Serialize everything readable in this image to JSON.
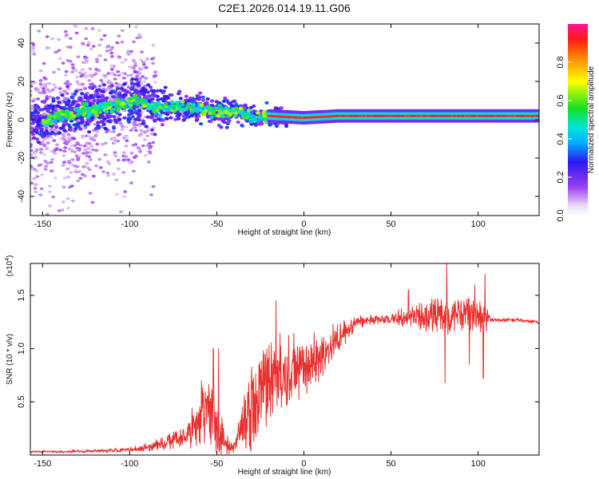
{
  "title": "C2E1.2026.014.19.11.G06",
  "colors": {
    "snr_line": "#e8302f",
    "background": "#ffffff",
    "axes": "#000000"
  },
  "chart_data": [
    {
      "type": "heatmap",
      "name": "spectrogram",
      "xlabel": "Height of straight line (km)",
      "ylabel": "Frequency (Hz)",
      "xlim": [
        -157,
        135
      ],
      "ylim": [
        -50,
        50
      ],
      "x_ticks": [
        "-150",
        "-100",
        "-50",
        "0",
        "50",
        "100"
      ],
      "x_tick_values": [
        -150,
        -100,
        -50,
        0,
        50,
        100
      ],
      "y_ticks": [
        "-40",
        "-20",
        "0",
        "20",
        "40"
      ],
      "y_tick_values": [
        -40,
        -20,
        0,
        20,
        40
      ],
      "ridge": [
        {
          "x": -150,
          "f": 0
        },
        {
          "x": -130,
          "f": 4
        },
        {
          "x": -110,
          "f": 7
        },
        {
          "x": -95,
          "f": 10
        },
        {
          "x": -85,
          "f": 6
        },
        {
          "x": -75,
          "f": 7
        },
        {
          "x": -60,
          "f": 6
        },
        {
          "x": -50,
          "f": 4
        },
        {
          "x": -40,
          "f": 5
        },
        {
          "x": -30,
          "f": 1
        },
        {
          "x": -20,
          "f": 2
        },
        {
          "x": 0,
          "f": 1
        },
        {
          "x": 20,
          "f": 2
        },
        {
          "x": 50,
          "f": 2
        },
        {
          "x": 100,
          "f": 2
        },
        {
          "x": 135,
          "f": 2
        }
      ],
      "colorbar": {
        "label": "Normalized spectral amplitude",
        "range": [
          0,
          1
        ],
        "ticks": [
          "0.0",
          "0.2",
          "0.4",
          "0.6",
          "0.8"
        ],
        "tick_values": [
          0,
          0.2,
          0.4,
          0.6,
          0.8
        ],
        "colormap": "rainbow"
      }
    },
    {
      "type": "line",
      "name": "snr",
      "xlabel": "Height of straight line (km)",
      "ylabel": "SNR (10 * v/v)",
      "y_scale_label": "(x10",
      "y_scale_exponent": "4",
      "y_scale_suffix": ")",
      "xlim": [
        -157,
        135
      ],
      "ylim": [
        0,
        1.8
      ],
      "x_ticks": [
        "-150",
        "-100",
        "-50",
        "0",
        "50",
        "100"
      ],
      "x_tick_values": [
        -150,
        -100,
        -50,
        0,
        50,
        100
      ],
      "y_ticks": [
        "0.5",
        "1.0",
        "1.5"
      ],
      "y_tick_values": [
        0.5,
        1.0,
        1.5
      ],
      "envelope": [
        {
          "x": -157,
          "base": 0.03,
          "amp": 0.01
        },
        {
          "x": -110,
          "base": 0.04,
          "amp": 0.02
        },
        {
          "x": -95,
          "base": 0.06,
          "amp": 0.03
        },
        {
          "x": -82,
          "base": 0.1,
          "amp": 0.06
        },
        {
          "x": -70,
          "base": 0.17,
          "amp": 0.1
        },
        {
          "x": -62,
          "base": 0.3,
          "amp": 0.25
        },
        {
          "x": -55,
          "base": 0.5,
          "amp": 0.42
        },
        {
          "x": -50,
          "base": 0.28,
          "amp": 0.3
        },
        {
          "x": -45,
          "base": 0.1,
          "amp": 0.1
        },
        {
          "x": -40,
          "base": 0.08,
          "amp": 0.06
        },
        {
          "x": -33,
          "base": 0.35,
          "amp": 0.35
        },
        {
          "x": -25,
          "base": 0.55,
          "amp": 0.55
        },
        {
          "x": -18,
          "base": 0.75,
          "amp": 0.45
        },
        {
          "x": -8,
          "base": 0.8,
          "amp": 0.35
        },
        {
          "x": 0,
          "base": 0.85,
          "amp": 0.3
        },
        {
          "x": 10,
          "base": 0.95,
          "amp": 0.25
        },
        {
          "x": 20,
          "base": 1.1,
          "amp": 0.15
        },
        {
          "x": 30,
          "base": 1.25,
          "amp": 0.06
        },
        {
          "x": 45,
          "base": 1.28,
          "amp": 0.04
        },
        {
          "x": 60,
          "base": 1.3,
          "amp": 0.1
        },
        {
          "x": 75,
          "base": 1.3,
          "amp": 0.18
        },
        {
          "x": 90,
          "base": 1.32,
          "amp": 0.18
        },
        {
          "x": 105,
          "base": 1.3,
          "amp": 0.15
        },
        {
          "x": 107,
          "base": 1.27,
          "amp": 0.02
        },
        {
          "x": 120,
          "base": 1.27,
          "amp": 0.02
        },
        {
          "x": 135,
          "base": 1.25,
          "amp": 0.02
        }
      ],
      "spikes": [
        {
          "x": -52,
          "y": 1.0
        },
        {
          "x": -49,
          "y": 1.0
        },
        {
          "x": -16,
          "y": 1.45
        },
        {
          "x": 82,
          "y": 1.8
        },
        {
          "x": 98,
          "y": 1.6
        },
        {
          "x": 104,
          "y": 1.7
        },
        {
          "x": 60,
          "y": 1.55
        },
        {
          "x": 81,
          "y": 0.68
        },
        {
          "x": 103,
          "y": 0.72
        },
        {
          "x": 95,
          "y": 0.85
        }
      ]
    }
  ]
}
